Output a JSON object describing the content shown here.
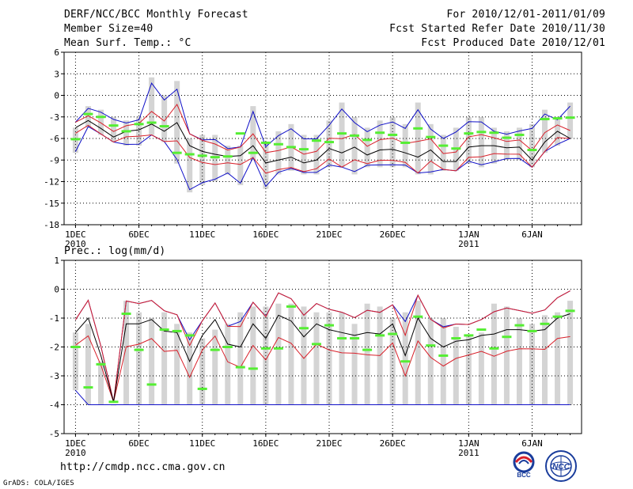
{
  "header": {
    "title": "DERF/NCC/BCC Monthly Forecast",
    "member_size": "Member Size=40",
    "variable1": "Mean Surf. Temp.: °C",
    "for_period": "For 2010/12/01-2011/01/09",
    "fcst_started": "Fcst Started Refer Date 2010/11/30",
    "fcst_produced": "Fcst Produced Date 2010/12/01"
  },
  "footer": {
    "url": "http://cmdp.ncc.cma.gov.cn",
    "grads": "GrADS: COLA/IGES",
    "logo_bcc": "BCC",
    "logo_ncc": "NCC"
  },
  "colors": {
    "box": "#d4d4d4",
    "median": "#000000",
    "quartile": "#d8202a",
    "extreme": "#1010c8",
    "dash": "#55ee33",
    "grid": "#000000"
  },
  "chart_data": [
    {
      "type": "box-ensemble",
      "title": "Mean Surf. Temp.: °C",
      "ylim": [
        -18,
        6
      ],
      "yticks": [
        6,
        3,
        0,
        -3,
        -6,
        -9,
        -12,
        -15,
        -18
      ],
      "xtick_labels": [
        {
          "day": 1,
          "label": "1DEC",
          "sub": "2010"
        },
        {
          "day": 6,
          "label": "6DEC"
        },
        {
          "day": 11,
          "label": "11DEC"
        },
        {
          "day": 16,
          "label": "16DEC"
        },
        {
          "day": 21,
          "label": "21DEC"
        },
        {
          "day": 26,
          "label": "26DEC"
        },
        {
          "day": 32,
          "label": "1JAN",
          "sub": "2011"
        },
        {
          "day": 37,
          "label": "6JAN"
        }
      ],
      "days": 40,
      "box_low": [
        -8,
        -4.5,
        -5.5,
        -6.5,
        -7,
        -7,
        -5.5,
        -6.5,
        -9.5,
        -13.5,
        -12.5,
        -12,
        -11,
        -12.5,
        -9,
        -13,
        -11,
        -10.5,
        -11,
        -11,
        -10,
        -10,
        -11,
        -10,
        -10,
        -10,
        -10,
        -11,
        -11,
        -10.5,
        -10.5,
        -9.5,
        -10,
        -9.5,
        -9,
        -9,
        -10,
        -8,
        -7,
        -6
      ],
      "box_high": [
        -4.5,
        -1.5,
        -2,
        -3,
        -3.5,
        -3,
        2.5,
        0,
        2,
        -6,
        -5.5,
        -5.5,
        -7,
        -7,
        -1.5,
        -6.5,
        -5,
        -4,
        -5.5,
        -5.5,
        -3.5,
        -1,
        -3,
        -4.5,
        -3.5,
        -3,
        -4,
        -1,
        -4,
        -5.5,
        -4.5,
        -3,
        -3,
        -4.5,
        -5,
        -4.5,
        -4,
        -2,
        -3,
        -1
      ],
      "dash": [
        -6.1,
        -2.6,
        -3,
        -4.2,
        -5,
        -4,
        -3.8,
        -4.3,
        -8,
        -8.2,
        -8.4,
        -8.6,
        -8.5,
        -5.3,
        -8,
        -6.6,
        -6.8,
        -7.2,
        -7.5,
        -6.3,
        -6.5,
        -5.3,
        -5.6,
        -6.2,
        -5.2,
        -5.5,
        -6.6,
        -4.6,
        -5.8,
        -7,
        -7.4,
        -5.3,
        -5.1,
        -5.2,
        -5.9,
        -5.5,
        -7.6,
        -3.3,
        -3.2,
        -3.1
      ],
      "median": [
        -4.5,
        -3.5,
        -4.6,
        -5.8,
        -5,
        -4.8,
        -4,
        -5,
        -3.8,
        -7,
        -7.8,
        -8.2,
        -8.5,
        -8.4,
        -7,
        -9.4,
        -9,
        -8.6,
        -9.4,
        -9,
        -7.4,
        -8,
        -7.2,
        -8.3,
        -7.6,
        -7.5,
        -8,
        -8.6,
        -7.6,
        -9.2,
        -9.2,
        -7.2,
        -7,
        -7,
        -7.3,
        -7.2,
        -9,
        -6.5,
        -5,
        -6
      ]
    },
    {
      "type": "box-ensemble",
      "title": "Prec.: log(mm/d)",
      "ylim": [
        -5,
        1
      ],
      "yticks": [
        1,
        0,
        -1,
        -2,
        -3,
        -4,
        -5
      ],
      "xtick_labels": [
        {
          "day": 1,
          "label": "1DEC",
          "sub": "2010"
        },
        {
          "day": 6,
          "label": "6DEC"
        },
        {
          "day": 11,
          "label": "11DEC"
        },
        {
          "day": 16,
          "label": "16DEC"
        },
        {
          "day": 21,
          "label": "21DEC"
        },
        {
          "day": 26,
          "label": "26DEC"
        },
        {
          "day": 32,
          "label": "1JAN",
          "sub": "2011"
        },
        {
          "day": 37,
          "label": "6JAN"
        }
      ],
      "days": 40,
      "box_low": [
        -3.5,
        -4,
        -4,
        -4,
        -4,
        -4,
        -4,
        -4,
        -4,
        -4,
        -4,
        -4,
        -4,
        -4,
        -4,
        -4,
        -4,
        -4,
        -4,
        -4,
        -4,
        -4,
        -4,
        -4,
        -4,
        -4,
        -4,
        -4,
        -4,
        -4,
        -4,
        -4,
        -4,
        -4,
        -4,
        -4,
        -4,
        -4,
        -4,
        -4
      ],
      "box_high": [
        -1.5,
        -1.2,
        -2.5,
        -4,
        -0.4,
        -0.8,
        -1,
        -0.8,
        -1.2,
        -1.5,
        -1.7,
        -1.4,
        -1.2,
        -0.8,
        -0.6,
        -0.6,
        -0.5,
        -0.5,
        -0.6,
        -0.8,
        -0.8,
        -0.8,
        -1.2,
        -0.5,
        -0.6,
        -1,
        -0.8,
        -0.4,
        -1,
        -1,
        -1.3,
        -1.6,
        -1.5,
        -0.5,
        -0.6,
        -1,
        -1.2,
        -0.9,
        -0.8,
        -0.4
      ],
      "dash": [
        -2,
        -3.4,
        -2.6,
        -3.9,
        -0.85,
        -2.1,
        -3.3,
        -1.4,
        -1.45,
        -1.6,
        -3.45,
        -2.1,
        -2,
        -2.7,
        -2.75,
        -2.05,
        -2.05,
        -0.6,
        -1.35,
        -1.9,
        -1.25,
        -1.7,
        -1.7,
        -2.1,
        -1.6,
        -1.55,
        -2.5,
        -0.95,
        -1.95,
        -2.3,
        -1.7,
        -1.6,
        -1.4,
        -2.05,
        -1.65,
        -1.25,
        -1.45,
        -1.2,
        -0.95,
        -0.75
      ],
      "median": [
        -1.5,
        -1,
        -2.3,
        -3.9,
        -1.2,
        -1.2,
        -1.05,
        -1.45,
        -1.5,
        -2.5,
        -1.6,
        -1.05,
        -1.9,
        -2,
        -1.2,
        -1.7,
        -0.9,
        -1.1,
        -1.65,
        -1.2,
        -1.4,
        -1.5,
        -1.6,
        -1.5,
        -1.55,
        -1.2,
        -2.3,
        -1,
        -1.7,
        -2,
        -1.8,
        -1.75,
        -1.6,
        -1.55,
        -1.4,
        -1.4,
        -1.45,
        -1.4,
        -1,
        -0.85
      ]
    }
  ]
}
